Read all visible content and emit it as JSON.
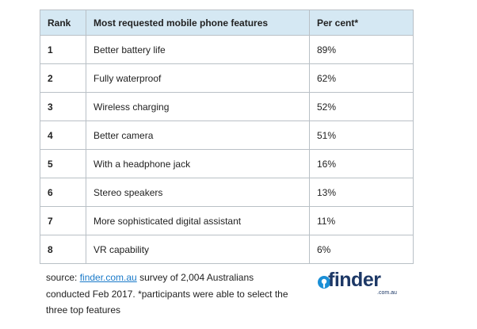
{
  "table": {
    "headers": [
      "Rank",
      "Most requested mobile phone features",
      "Per cent*"
    ],
    "rows": [
      {
        "rank": "1",
        "feature": "Better battery life",
        "percent": "89%"
      },
      {
        "rank": "2",
        "feature": "Fully waterproof",
        "percent": "62%"
      },
      {
        "rank": "3",
        "feature": "Wireless charging",
        "percent": "52%"
      },
      {
        "rank": "4",
        "feature": "Better camera",
        "percent": "51%"
      },
      {
        "rank": "5",
        "feature": "With a headphone jack",
        "percent": "16%"
      },
      {
        "rank": "6",
        "feature": "Stereo speakers",
        "percent": "13%"
      },
      {
        "rank": "7",
        "feature": "More sophisticated digital assistant",
        "percent": "11%"
      },
      {
        "rank": "8",
        "feature": "VR capability",
        "percent": "6%"
      }
    ]
  },
  "source": {
    "prefix": "source: ",
    "link_text": "finder.com.au",
    "line1_rest": " survey of 2,004 Australians",
    "line2": "conducted Feb 2017. *participants were able to select the",
    "line3": "three top features"
  },
  "logo": {
    "word": "finder",
    "sub": ".com.au",
    "color": "#1d3866",
    "accent": "#1a8fd6"
  }
}
